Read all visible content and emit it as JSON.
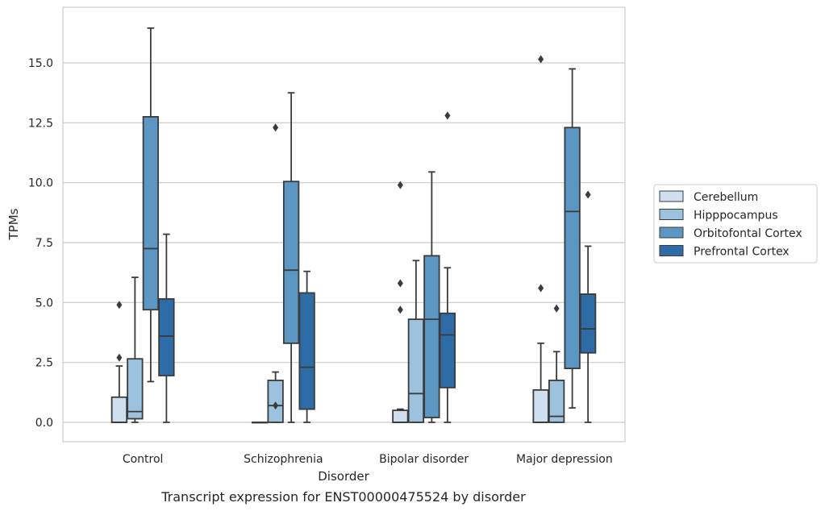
{
  "chart_data": {
    "type": "box",
    "caption": "Transcript expression for ENST00000475524 by disorder",
    "xlabel": "Disorder",
    "ylabel": "TPMs",
    "ylim": [
      -0.8,
      17.3
    ],
    "yticks": [
      "0.0",
      "2.5",
      "5.0",
      "7.5",
      "10.0",
      "12.5",
      "15.0"
    ],
    "ytick_values": [
      0,
      2.5,
      5,
      7.5,
      10,
      12.5,
      15
    ],
    "grid": true,
    "legend_position": "right",
    "categories": [
      "Control",
      "Schizophrenia",
      "Bipolar disorder",
      "Major depression"
    ],
    "series": [
      {
        "name": "Cerebellum",
        "color": "#cfdff0",
        "boxes": [
          {
            "whisker_low": 0,
            "q1": 0,
            "median": 0,
            "q3": 1.05,
            "whisker_high": 2.35,
            "outliers": [
              2.7,
              4.9
            ]
          },
          {
            "whisker_low": 0,
            "q1": 0,
            "median": 0,
            "q3": 0,
            "whisker_high": 0,
            "outliers": []
          },
          {
            "whisker_low": 0,
            "q1": 0,
            "median": 0,
            "q3": 0.5,
            "whisker_high": 0.55,
            "outliers": [
              4.7,
              5.8,
              9.9
            ]
          },
          {
            "whisker_low": 0,
            "q1": 0,
            "median": 0,
            "q3": 1.35,
            "whisker_high": 3.3,
            "outliers": [
              5.6,
              15.15
            ]
          }
        ]
      },
      {
        "name": "Hipppocampus",
        "color": "#9cc2de",
        "boxes": [
          {
            "whisker_low": 0,
            "q1": 0.15,
            "median": 0.45,
            "q3": 2.65,
            "whisker_high": 6.05,
            "outliers": []
          },
          {
            "whisker_low": 0,
            "q1": 0,
            "median": 0.7,
            "q3": 1.75,
            "whisker_high": 2.1,
            "outliers": [
              0.7,
              12.3
            ]
          },
          {
            "whisker_low": 0,
            "q1": 0,
            "median": 1.2,
            "q3": 4.3,
            "whisker_high": 6.75,
            "outliers": []
          },
          {
            "whisker_low": 0,
            "q1": 0,
            "median": 0.25,
            "q3": 1.75,
            "whisker_high": 2.95,
            "outliers": [
              4.75
            ]
          }
        ]
      },
      {
        "name": "Orbitofontal Cortex",
        "color": "#5b97c2",
        "boxes": [
          {
            "whisker_low": 1.7,
            "q1": 4.7,
            "median": 7.25,
            "q3": 12.75,
            "whisker_high": 16.45,
            "outliers": []
          },
          {
            "whisker_low": 0,
            "q1": 3.3,
            "median": 6.35,
            "q3": 10.05,
            "whisker_high": 13.75,
            "outliers": []
          },
          {
            "whisker_low": 0,
            "q1": 0.2,
            "median": 4.3,
            "q3": 6.95,
            "whisker_high": 10.45,
            "outliers": []
          },
          {
            "whisker_low": 0.6,
            "q1": 2.25,
            "median": 8.8,
            "q3": 12.3,
            "whisker_high": 14.75,
            "outliers": []
          }
        ]
      },
      {
        "name": "Prefrontal Cortex",
        "color": "#2e6ca8",
        "boxes": [
          {
            "whisker_low": 0,
            "q1": 1.95,
            "median": 3.6,
            "q3": 5.15,
            "whisker_high": 7.85,
            "outliers": []
          },
          {
            "whisker_low": 0,
            "q1": 0.55,
            "median": 2.3,
            "q3": 5.4,
            "whisker_high": 6.3,
            "outliers": []
          },
          {
            "whisker_low": 0,
            "q1": 1.45,
            "median": 3.65,
            "q3": 4.55,
            "whisker_high": 6.45,
            "outliers": [
              12.8
            ]
          },
          {
            "whisker_low": 0,
            "q1": 2.9,
            "median": 3.9,
            "q3": 5.35,
            "whisker_high": 7.35,
            "outliers": [
              9.5
            ]
          }
        ]
      }
    ]
  }
}
